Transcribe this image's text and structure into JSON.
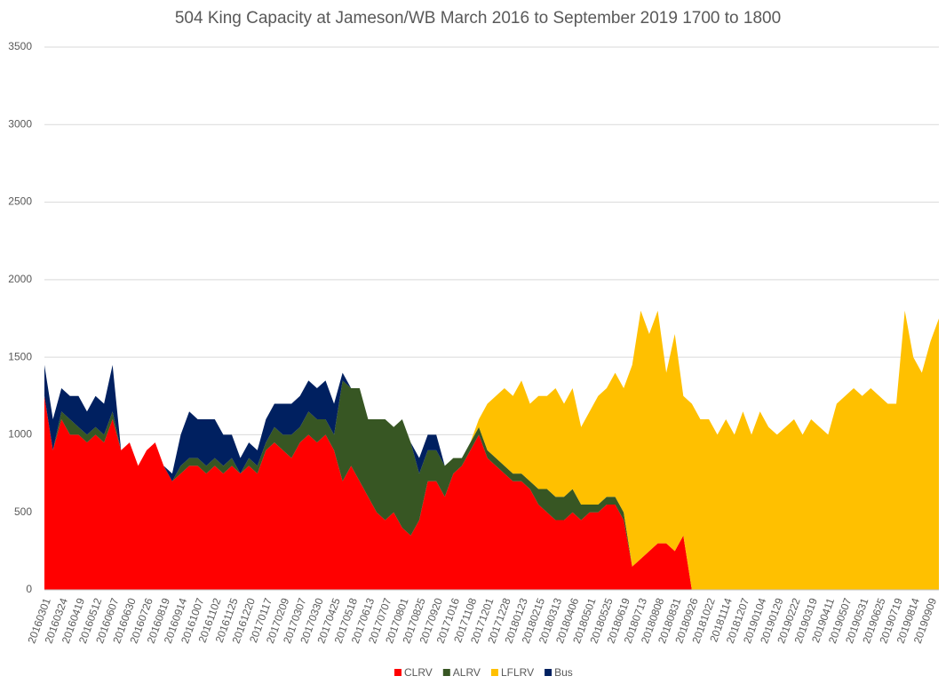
{
  "chart_data": {
    "type": "stacked-area",
    "title": "504 King Capacity at Jameson/WB March 2016 to September 2019  1700 to 1800",
    "categories": [
      "20160301",
      null,
      "20160324",
      null,
      "20160419",
      null,
      "20160512",
      null,
      "20160607",
      null,
      "20160630",
      null,
      "20160726",
      null,
      "20160819",
      null,
      "20160914",
      null,
      "20161007",
      null,
      "20161102",
      null,
      "20161125",
      null,
      "20161220",
      null,
      "20170117",
      null,
      "20170209",
      null,
      "20170307",
      null,
      "20170330",
      null,
      "20170425",
      null,
      "20170518",
      null,
      "20170613",
      null,
      "20170707",
      null,
      "20170801",
      null,
      "20170825",
      null,
      "20170920",
      null,
      "20171016",
      null,
      "20171108",
      null,
      "20171201",
      null,
      "20171228",
      null,
      "20180123",
      null,
      "20180215",
      null,
      "20180313",
      null,
      "20180406",
      null,
      "20180501",
      null,
      "20180525",
      null,
      "20180619",
      null,
      "20180713",
      null,
      "20180808",
      null,
      "20180831",
      null,
      "20180926",
      null,
      "20181022",
      null,
      "20181114",
      null,
      "20181207",
      null,
      "20190104",
      null,
      "20190129",
      null,
      "20190222",
      null,
      "20190319",
      null,
      "20190411",
      null,
      "20190507",
      null,
      "20190531",
      null,
      "20190625",
      null,
      "20190719",
      null,
      "20190814",
      null,
      "20190909",
      null
    ],
    "series": [
      {
        "name": "CLRV",
        "color": "#ff0000",
        "values": [
          1250,
          900,
          1100,
          1000,
          1000,
          950,
          1000,
          950,
          1100,
          900,
          950,
          800,
          900,
          950,
          800,
          700,
          750,
          800,
          800,
          750,
          800,
          750,
          800,
          750,
          800,
          750,
          900,
          950,
          900,
          850,
          950,
          1000,
          950,
          1000,
          900,
          700,
          800,
          700,
          600,
          500,
          450,
          500,
          400,
          350,
          450,
          700,
          700,
          600,
          750,
          800,
          900,
          1000,
          850,
          800,
          750,
          700,
          700,
          650,
          550,
          500,
          450,
          450,
          500,
          450,
          500,
          500,
          550,
          550,
          450,
          150,
          200,
          250,
          300,
          300,
          250,
          350,
          0,
          0,
          0,
          0,
          0,
          0,
          0,
          0,
          0,
          0,
          0,
          0,
          0,
          0,
          0,
          0,
          0,
          0,
          0,
          0,
          0,
          0,
          0,
          0,
          0,
          0,
          0,
          0,
          0,
          0
        ]
      },
      {
        "name": "ALRV",
        "color": "#375623",
        "values": [
          0,
          0,
          50,
          100,
          50,
          50,
          50,
          50,
          50,
          0,
          0,
          0,
          0,
          0,
          0,
          0,
          50,
          50,
          50,
          50,
          50,
          50,
          50,
          0,
          50,
          50,
          50,
          100,
          100,
          150,
          100,
          150,
          150,
          100,
          100,
          650,
          500,
          600,
          500,
          600,
          650,
          550,
          700,
          600,
          300,
          200,
          200,
          200,
          100,
          50,
          50,
          50,
          50,
          50,
          50,
          50,
          50,
          50,
          100,
          150,
          150,
          150,
          150,
          100,
          50,
          50,
          50,
          50,
          50,
          0,
          0,
          0,
          0,
          0,
          0,
          0,
          0,
          0,
          0,
          0,
          0,
          0,
          0,
          0,
          0,
          0,
          0,
          0,
          0,
          0,
          0,
          0,
          0,
          0,
          0,
          0,
          0,
          0,
          0,
          0,
          0,
          0,
          0,
          0,
          0,
          0
        ]
      },
      {
        "name": "LFLRV",
        "color": "#ffc000",
        "values": [
          0,
          0,
          0,
          0,
          0,
          0,
          0,
          0,
          0,
          0,
          0,
          0,
          0,
          0,
          0,
          0,
          0,
          0,
          0,
          0,
          0,
          0,
          0,
          0,
          0,
          0,
          0,
          0,
          0,
          0,
          0,
          0,
          0,
          0,
          0,
          0,
          0,
          0,
          0,
          0,
          0,
          0,
          0,
          0,
          0,
          0,
          0,
          0,
          0,
          0,
          0,
          50,
          300,
          400,
          500,
          500,
          600,
          500,
          600,
          600,
          700,
          600,
          650,
          500,
          600,
          700,
          700,
          800,
          800,
          1300,
          1600,
          1400,
          1500,
          1100,
          1400,
          900,
          1200,
          1100,
          1100,
          1000,
          1100,
          1000,
          1150,
          1000,
          1150,
          1050,
          1000,
          1050,
          1100,
          1000,
          1100,
          1050,
          1000,
          1200,
          1250,
          1300,
          1250,
          1300,
          1250,
          1200,
          1200,
          1800,
          1500,
          1400,
          1600,
          1750
        ]
      },
      {
        "name": "Bus",
        "color": "#002060",
        "values": [
          200,
          200,
          150,
          150,
          200,
          150,
          200,
          200,
          300,
          0,
          0,
          0,
          0,
          0,
          0,
          50,
          200,
          300,
          250,
          300,
          250,
          200,
          150,
          100,
          100,
          100,
          150,
          150,
          200,
          200,
          200,
          200,
          200,
          250,
          200,
          50,
          0,
          0,
          0,
          0,
          0,
          0,
          0,
          0,
          100,
          100,
          100,
          0,
          0,
          0,
          0,
          0,
          0,
          0,
          0,
          0,
          0,
          0,
          0,
          0,
          0,
          0,
          0,
          0,
          0,
          0,
          0,
          0,
          0,
          0,
          0,
          0,
          0,
          0,
          0,
          0,
          0,
          0,
          0,
          0,
          0,
          0,
          0,
          0,
          0,
          0,
          0,
          0,
          0,
          0,
          0,
          0,
          0,
          0,
          0,
          0,
          0,
          0,
          0,
          0,
          0,
          0,
          0,
          0,
          0,
          0
        ]
      }
    ],
    "ylim": [
      0,
      3500
    ],
    "yticks": [
      0,
      500,
      1000,
      1500,
      2000,
      2500,
      3000,
      3500
    ],
    "grid": true,
    "legend": "bottom"
  }
}
